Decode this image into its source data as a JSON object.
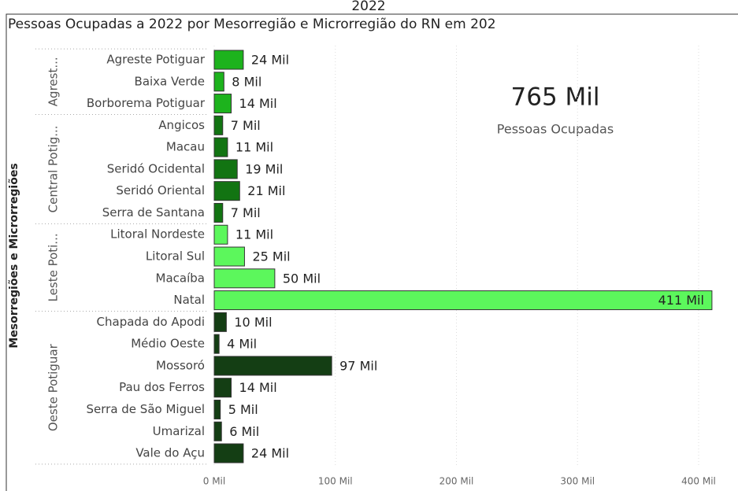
{
  "chart_data": {
    "type": "grouped-hbar",
    "title": "Pessoas Ocupadas a 2022 por Mesorregião e Microrregião do RN em 202",
    "title_overflow": "2022",
    "y_axis_label": "Mesorregiões e Microrregiões",
    "xlim": [
      0,
      400
    ],
    "xticks": [
      {
        "value": 0,
        "label": "0 Mil"
      },
      {
        "value": 100,
        "label": "100 Mil"
      },
      {
        "value": 200,
        "label": "200 Mil"
      },
      {
        "value": 300,
        "label": "300 Mil"
      },
      {
        "value": 400,
        "label": "400 Mil"
      }
    ],
    "grid": true,
    "groups": [
      {
        "name": "Agrest...",
        "color": "#1db31d",
        "categories": [
          "Agreste Potiguar",
          "Baixa Verde",
          "Borborema Potiguar"
        ],
        "values": [
          24,
          8,
          14
        ],
        "value_labels": [
          "24 Mil",
          "8 Mil",
          "14 Mil"
        ]
      },
      {
        "name": "Central Potig...",
        "color": "#127412",
        "categories": [
          "Angicos",
          "Macau",
          "Seridó Ocidental",
          "Seridó Oriental",
          "Serra de Santana"
        ],
        "values": [
          7,
          11,
          19,
          21,
          7
        ],
        "value_labels": [
          "7 Mil",
          "11 Mil",
          "19 Mil",
          "21 Mil",
          "7 Mil"
        ]
      },
      {
        "name": "Leste Poti...",
        "color": "#5cf75c",
        "categories": [
          "Litoral Nordeste",
          "Litoral Sul",
          "Macaíba",
          "Natal"
        ],
        "values": [
          11,
          25,
          50,
          411
        ],
        "value_labels": [
          "11 Mil",
          "25 Mil",
          "50 Mil",
          "411 Mil"
        ]
      },
      {
        "name": "Oeste Potiguar",
        "color": "#143e14",
        "categories": [
          "Chapada do Apodi",
          "Médio Oeste",
          "Mossoró",
          "Pau dos Ferros",
          "Serra de São Miguel",
          "Umarizal",
          "Vale do Açu"
        ],
        "values": [
          10,
          4,
          97,
          14,
          5,
          6,
          24
        ],
        "value_labels": [
          "10 Mil",
          "4 Mil",
          "97 Mil",
          "14 Mil",
          "5 Mil",
          "6 Mil",
          "24 Mil"
        ]
      }
    ],
    "card": {
      "value": 765,
      "value_label": "765 Mil",
      "label": "Pessoas Ocupadas"
    }
  }
}
